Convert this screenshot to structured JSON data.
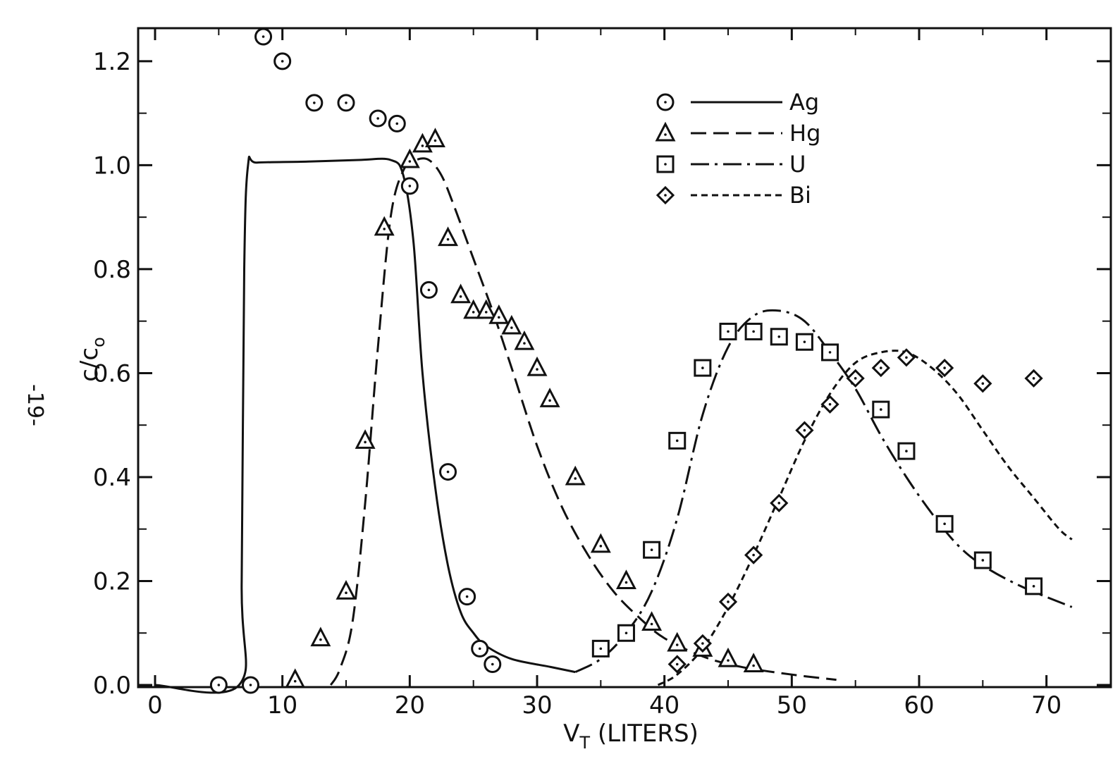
{
  "page_number": "-19-",
  "chart_data": {
    "type": "scatter",
    "title": "",
    "xlabel_main": "V",
    "xlabel_sub": "T",
    "xlabel_rest": " (LITERS)",
    "ylabel_main": "c/c",
    "ylabel_sub": "o",
    "xlim": [
      0,
      75
    ],
    "ylim": [
      0,
      1.25
    ],
    "x_ticks": [
      0,
      10,
      20,
      30,
      40,
      50,
      60,
      70
    ],
    "x_tick_labels": [
      "0",
      "10",
      "20",
      "30",
      "40",
      "50",
      "60",
      "70"
    ],
    "y_ticks": [
      0,
      0.2,
      0.4,
      0.6,
      0.8,
      1.0,
      1.2
    ],
    "y_tick_labels": [
      "0.0",
      "0.2",
      "0.4",
      "0.6",
      "0.8",
      "1.0",
      "1.2"
    ],
    "grid": false,
    "legend_position": "top-center",
    "series": [
      {
        "name": "Ag",
        "marker": "circle",
        "line_style": "solid",
        "points": [
          [
            5,
            0.0
          ],
          [
            7.5,
            0.0
          ],
          [
            8.5,
            1.25
          ],
          [
            10,
            1.2
          ],
          [
            12.5,
            1.12
          ],
          [
            15,
            1.12
          ],
          [
            17.5,
            1.09
          ],
          [
            19,
            1.08
          ],
          [
            20,
            0.96
          ],
          [
            21.5,
            0.76
          ],
          [
            23,
            0.41
          ],
          [
            24.5,
            0.17
          ],
          [
            25.5,
            0.07
          ],
          [
            26.5,
            0.04
          ]
        ],
        "curve": [
          [
            0,
            0.0
          ],
          [
            6.6,
            0.0
          ],
          [
            6.8,
            0.2
          ],
          [
            7.0,
            0.8
          ],
          [
            7.3,
            1.0
          ],
          [
            8,
            1.005
          ],
          [
            12,
            1.007
          ],
          [
            16,
            1.01
          ],
          [
            18.5,
            1.01
          ],
          [
            19.5,
            0.98
          ],
          [
            20.3,
            0.85
          ],
          [
            21,
            0.6
          ],
          [
            22,
            0.38
          ],
          [
            23,
            0.23
          ],
          [
            24,
            0.14
          ],
          [
            25,
            0.1
          ],
          [
            26,
            0.075
          ],
          [
            28,
            0.05
          ],
          [
            31,
            0.035
          ],
          [
            33,
            0.025
          ]
        ]
      },
      {
        "name": "Hg",
        "marker": "triangle",
        "line_style": "dashed",
        "points": [
          [
            11,
            0.01
          ],
          [
            13,
            0.09
          ],
          [
            15,
            0.18
          ],
          [
            16.5,
            0.47
          ],
          [
            18,
            0.88
          ],
          [
            20,
            1.01
          ],
          [
            21,
            1.04
          ],
          [
            22,
            1.05
          ],
          [
            23,
            0.86
          ],
          [
            24,
            0.75
          ],
          [
            25,
            0.72
          ],
          [
            26,
            0.72
          ],
          [
            27,
            0.71
          ],
          [
            28,
            0.69
          ],
          [
            29,
            0.66
          ],
          [
            30,
            0.61
          ],
          [
            31,
            0.55
          ],
          [
            33,
            0.4
          ],
          [
            35,
            0.27
          ],
          [
            37,
            0.2
          ],
          [
            39,
            0.12
          ],
          [
            41,
            0.08
          ],
          [
            43,
            0.07
          ],
          [
            45,
            0.05
          ],
          [
            47,
            0.04
          ]
        ],
        "curve": [
          [
            13.8,
            0.0
          ],
          [
            14.5,
            0.03
          ],
          [
            15.5,
            0.12
          ],
          [
            16.5,
            0.35
          ],
          [
            17.5,
            0.65
          ],
          [
            18.5,
            0.9
          ],
          [
            19.5,
            0.99
          ],
          [
            20.5,
            1.01
          ],
          [
            21.5,
            1.01
          ],
          [
            22.5,
            0.98
          ],
          [
            23.5,
            0.92
          ],
          [
            25,
            0.82
          ],
          [
            26.5,
            0.72
          ],
          [
            28,
            0.61
          ],
          [
            30,
            0.46
          ],
          [
            32,
            0.34
          ],
          [
            34,
            0.25
          ],
          [
            36,
            0.18
          ],
          [
            38,
            0.13
          ],
          [
            40,
            0.09
          ],
          [
            43,
            0.055
          ],
          [
            46,
            0.035
          ],
          [
            50,
            0.02
          ],
          [
            53.5,
            0.01
          ]
        ]
      },
      {
        "name": "U",
        "marker": "square",
        "line_style": "dash-dot",
        "points": [
          [
            35,
            0.07
          ],
          [
            37,
            0.1
          ],
          [
            39,
            0.26
          ],
          [
            41,
            0.47
          ],
          [
            43,
            0.61
          ],
          [
            45,
            0.68
          ],
          [
            47,
            0.68
          ],
          [
            49,
            0.67
          ],
          [
            51,
            0.66
          ],
          [
            53,
            0.64
          ],
          [
            57,
            0.53
          ],
          [
            59,
            0.45
          ],
          [
            62,
            0.31
          ],
          [
            65,
            0.24
          ],
          [
            69,
            0.19
          ]
        ],
        "curve": [
          [
            33,
            0.025
          ],
          [
            35,
            0.05
          ],
          [
            37,
            0.1
          ],
          [
            39,
            0.18
          ],
          [
            41,
            0.32
          ],
          [
            43,
            0.52
          ],
          [
            45,
            0.65
          ],
          [
            47,
            0.71
          ],
          [
            49,
            0.72
          ],
          [
            51,
            0.7
          ],
          [
            53,
            0.64
          ],
          [
            55,
            0.57
          ],
          [
            57,
            0.48
          ],
          [
            59,
            0.4
          ],
          [
            61,
            0.33
          ],
          [
            63,
            0.27
          ],
          [
            65,
            0.23
          ],
          [
            68,
            0.19
          ],
          [
            72,
            0.15
          ]
        ]
      },
      {
        "name": "Bi",
        "marker": "diamond",
        "line_style": "short-dashed",
        "points": [
          [
            41,
            0.04
          ],
          [
            43,
            0.08
          ],
          [
            45,
            0.16
          ],
          [
            47,
            0.25
          ],
          [
            49,
            0.35
          ],
          [
            51,
            0.49
          ],
          [
            53,
            0.54
          ],
          [
            55,
            0.59
          ],
          [
            57,
            0.61
          ],
          [
            59,
            0.63
          ],
          [
            62,
            0.61
          ],
          [
            65,
            0.58
          ],
          [
            69,
            0.59
          ]
        ],
        "curve": [
          [
            39.5,
            0.0
          ],
          [
            41,
            0.02
          ],
          [
            43,
            0.07
          ],
          [
            45,
            0.15
          ],
          [
            47,
            0.25
          ],
          [
            49,
            0.36
          ],
          [
            51,
            0.47
          ],
          [
            53,
            0.56
          ],
          [
            55,
            0.62
          ],
          [
            57,
            0.64
          ],
          [
            59,
            0.64
          ],
          [
            61,
            0.61
          ],
          [
            63,
            0.56
          ],
          [
            65,
            0.49
          ],
          [
            67,
            0.42
          ],
          [
            69,
            0.36
          ],
          [
            71,
            0.3
          ],
          [
            72,
            0.28
          ]
        ]
      }
    ]
  }
}
